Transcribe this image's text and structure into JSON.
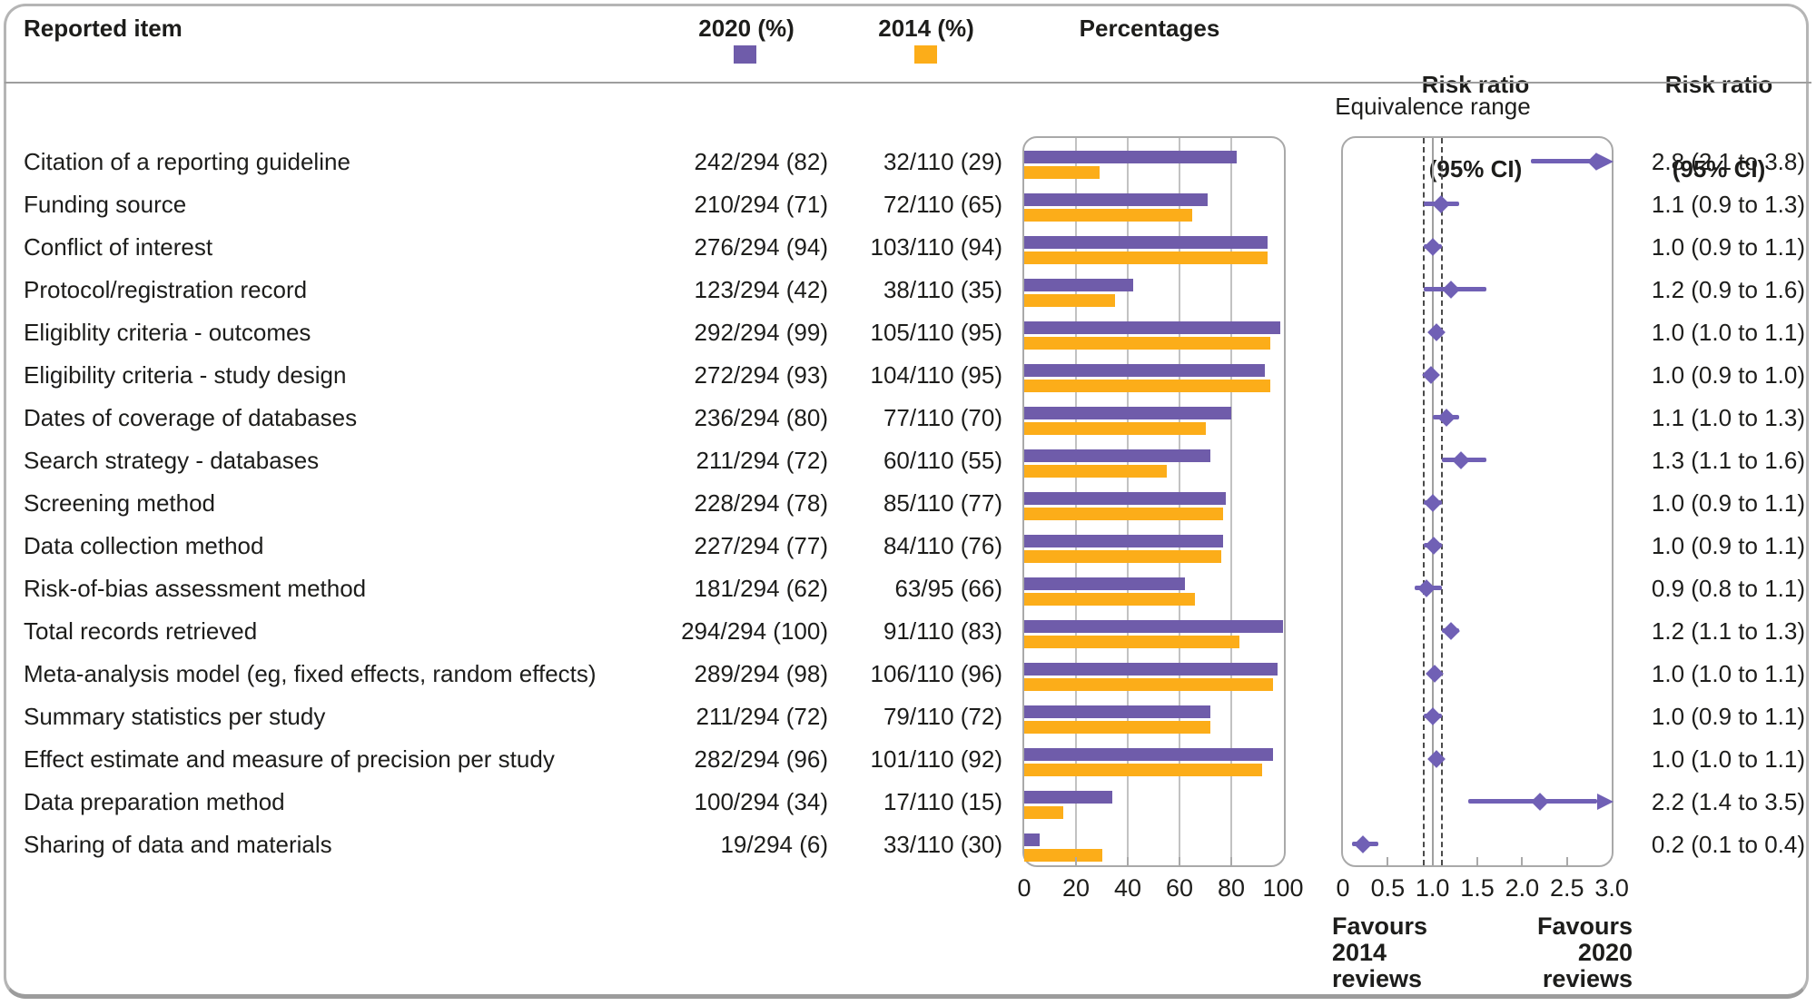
{
  "header": {
    "reported_item": "Reported item",
    "col_2020": "2020 (%)",
    "col_2014": "2014 (%)",
    "percentages": "Percentages",
    "rr1_line1": "Risk ratio",
    "rr1_line2": "(95% CI)",
    "rr2_line1": "Risk ratio",
    "rr2_line2": "(95% CI)"
  },
  "colors": {
    "purple_2020": "#6f5caa",
    "orange_2014": "#fcad19",
    "forest_purple": "#7060b5",
    "text": "#1d1d1b"
  },
  "table": {
    "rows": [
      {
        "label": "Citation of a reporting guideline",
        "v2020": "242/294 (82)",
        "v2014": "32/110 (29)"
      },
      {
        "label": "Funding source",
        "v2020": "210/294 (71)",
        "v2014": "72/110 (65)"
      },
      {
        "label": "Conflict of interest",
        "v2020": "276/294 (94)",
        "v2014": "103/110 (94)"
      },
      {
        "label": "Protocol/registration record",
        "v2020": "123/294 (42)",
        "v2014": "38/110 (35)"
      },
      {
        "label": "Eligiblity criteria - outcomes",
        "v2020": "292/294 (99)",
        "v2014": "105/110 (95)"
      },
      {
        "label": "Eligibility criteria - study design",
        "v2020": "272/294 (93)",
        "v2014": "104/110 (95)"
      },
      {
        "label": "Dates of coverage of databases",
        "v2020": "236/294 (80)",
        "v2014": "77/110 (70)"
      },
      {
        "label": "Search strategy - databases",
        "v2020": "211/294 (72)",
        "v2014": "60/110 (55)"
      },
      {
        "label": "Screening method",
        "v2020": "228/294 (78)",
        "v2014": "85/110 (77)"
      },
      {
        "label": "Data collection method",
        "v2020": "227/294 (77)",
        "v2014": "84/110 (76)"
      },
      {
        "label": "Risk-of-bias assessment method",
        "v2020": "181/294 (62)",
        "v2014": "63/95 (66)"
      },
      {
        "label": "Total records retrieved",
        "v2020": "294/294 (100)",
        "v2014": "91/110 (83)"
      },
      {
        "label": "Meta-analysis model (eg, fixed effects, random effects)",
        "v2020": "289/294 (98)",
        "v2014": "106/110 (96)"
      },
      {
        "label": "Summary statistics per study",
        "v2020": "211/294 (72)",
        "v2014": "79/110 (72)"
      },
      {
        "label": "Effect estimate and measure of precision per study",
        "v2020": "282/294 (96)",
        "v2014": "101/110 (92)"
      },
      {
        "label": "Data preparation method",
        "v2020": "100/294 (34)",
        "v2014": "17/110 (15)"
      },
      {
        "label": "Sharing of data and materials",
        "v2020": "19/294 (6)",
        "v2014": "33/110 (30)"
      }
    ]
  },
  "chart_data": [
    {
      "type": "bar",
      "orientation": "horizontal",
      "panel_title": "Percentages",
      "categories": [
        "Citation of a reporting guideline",
        "Funding source",
        "Conflict of interest",
        "Protocol/registration record",
        "Eligiblity criteria - outcomes",
        "Eligibility criteria - study design",
        "Dates of coverage of databases",
        "Search strategy - databases",
        "Screening method",
        "Data collection method",
        "Risk-of-bias assessment method",
        "Total records retrieved",
        "Meta-analysis model (eg, fixed effects, random effects)",
        "Summary statistics per study",
        "Effect estimate and measure of precision per study",
        "Data preparation method",
        "Sharing of data and materials"
      ],
      "series": [
        {
          "name": "2020 (%)",
          "color": "#6f5caa",
          "values": [
            82,
            71,
            94,
            42,
            99,
            93,
            80,
            72,
            78,
            77,
            62,
            100,
            98,
            72,
            96,
            34,
            6
          ]
        },
        {
          "name": "2014 (%)",
          "color": "#fcad19",
          "values": [
            29,
            65,
            94,
            35,
            95,
            95,
            70,
            55,
            77,
            76,
            66,
            83,
            96,
            72,
            92,
            15,
            30
          ]
        }
      ],
      "xlim": [
        0,
        100
      ],
      "x_ticks": [
        "0",
        "20",
        "40",
        "60",
        "80",
        "100"
      ],
      "grid": true
    },
    {
      "type": "forest",
      "panel_title": "Risk ratio (95% CI)",
      "xlim": [
        0,
        3
      ],
      "x_ticks": [
        "0",
        "0.5",
        "1.0",
        "1.5",
        "2.0",
        "2.5",
        "3.0"
      ],
      "reference_line": 1.0,
      "equivalence_label": "Equivalence range",
      "equivalence_range": [
        0.9,
        1.1
      ],
      "legend_position": "none",
      "points": [
        {
          "rr": 2.8,
          "lo": 2.1,
          "hi": 3.8,
          "plot": 2.83,
          "clipped": true,
          "text": "2.8 (2.1 to 3.8)"
        },
        {
          "rr": 1.1,
          "lo": 0.9,
          "hi": 1.3,
          "plot": 1.09,
          "clipped": false,
          "text": "1.1 (0.9 to 1.3)"
        },
        {
          "rr": 1.0,
          "lo": 0.9,
          "hi": 1.1,
          "plot": 1.0,
          "clipped": false,
          "text": "1.0 (0.9 to 1.1)"
        },
        {
          "rr": 1.2,
          "lo": 0.9,
          "hi": 1.6,
          "plot": 1.21,
          "clipped": false,
          "text": "1.2 (0.9 to 1.6)"
        },
        {
          "rr": 1.0,
          "lo": 1.0,
          "hi": 1.1,
          "plot": 1.04,
          "clipped": false,
          "text": "1.0 (1.0 to 1.1)"
        },
        {
          "rr": 1.0,
          "lo": 0.9,
          "hi": 1.0,
          "plot": 0.98,
          "clipped": false,
          "text": "1.0 (0.9 to 1.0)"
        },
        {
          "rr": 1.1,
          "lo": 1.0,
          "hi": 1.3,
          "plot": 1.15,
          "clipped": false,
          "text": "1.1 (1.0 to 1.3)"
        },
        {
          "rr": 1.3,
          "lo": 1.1,
          "hi": 1.6,
          "plot": 1.32,
          "clipped": false,
          "text": "1.3 (1.1 to 1.6)"
        },
        {
          "rr": 1.0,
          "lo": 0.9,
          "hi": 1.1,
          "plot": 1.0,
          "clipped": false,
          "text": "1.0 (0.9 to 1.1)"
        },
        {
          "rr": 1.0,
          "lo": 0.9,
          "hi": 1.1,
          "plot": 1.01,
          "clipped": false,
          "text": "1.0 (0.9 to 1.1)"
        },
        {
          "rr": 0.9,
          "lo": 0.8,
          "hi": 1.1,
          "plot": 0.93,
          "clipped": false,
          "text": "0.9 (0.8 to 1.1)"
        },
        {
          "rr": 1.2,
          "lo": 1.1,
          "hi": 1.3,
          "plot": 1.21,
          "clipped": false,
          "text": "1.2 (1.1 to 1.3)"
        },
        {
          "rr": 1.0,
          "lo": 1.0,
          "hi": 1.1,
          "plot": 1.02,
          "clipped": false,
          "text": "1.0 (1.0 to 1.1)"
        },
        {
          "rr": 1.0,
          "lo": 0.9,
          "hi": 1.1,
          "plot": 1.0,
          "clipped": false,
          "text": "1.0 (0.9 to 1.1)"
        },
        {
          "rr": 1.0,
          "lo": 1.0,
          "hi": 1.1,
          "plot": 1.04,
          "clipped": false,
          "text": "1.0 (1.0 to 1.1)"
        },
        {
          "rr": 2.2,
          "lo": 1.4,
          "hi": 3.5,
          "plot": 2.2,
          "clipped": true,
          "text": "2.2 (1.4 to 3.5)"
        },
        {
          "rr": 0.2,
          "lo": 0.1,
          "hi": 0.4,
          "plot": 0.22,
          "clipped": false,
          "text": "0.2 (0.1 to 0.4)"
        }
      ],
      "footnote_left": [
        "Favours",
        "2014",
        "reviews"
      ],
      "footnote_right": [
        "Favours",
        "2020",
        "reviews"
      ]
    }
  ]
}
